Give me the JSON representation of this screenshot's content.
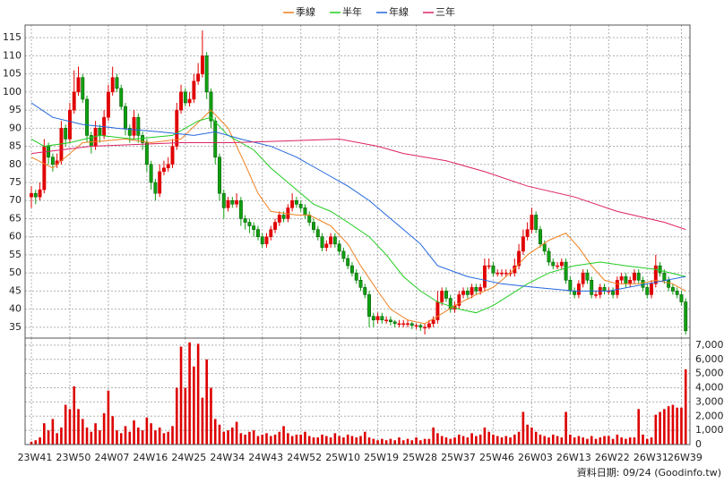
{
  "chart_data": {
    "type": "candlestick",
    "categories": [
      "23W41",
      null,
      null,
      null,
      null,
      null,
      null,
      null,
      null,
      "23W50",
      null,
      null,
      null,
      null,
      null,
      null,
      null,
      null,
      "24W07",
      null,
      null,
      null,
      null,
      null,
      null,
      null,
      null,
      "24W16",
      null,
      null,
      null,
      null,
      null,
      null,
      null,
      null,
      "24W25",
      null,
      null,
      null,
      null,
      null,
      null,
      null,
      null,
      "24W34",
      null,
      null,
      null,
      null,
      null,
      null,
      null,
      null,
      "24W43",
      null,
      null,
      null,
      null,
      null,
      null,
      null,
      null,
      "24W52",
      null,
      null,
      null,
      null,
      null,
      null,
      null,
      null,
      "25W10",
      null,
      null,
      null,
      null,
      null,
      null,
      null,
      null,
      "25W19",
      null,
      null,
      null,
      null,
      null,
      null,
      null,
      null,
      "25W28",
      null,
      null,
      null,
      null,
      null,
      null,
      null,
      null,
      "25W37",
      null,
      null,
      null,
      null,
      null,
      null,
      null,
      null,
      "25W46",
      null,
      null,
      null,
      null,
      null,
      null,
      null,
      null,
      "26W03",
      null,
      null,
      null,
      null,
      null,
      null,
      null,
      null,
      "26W13",
      null,
      null,
      null,
      null,
      null,
      null,
      null,
      null,
      "26W22",
      null,
      null,
      null,
      null,
      null,
      null,
      null,
      null,
      "26W31",
      null,
      null,
      null,
      null,
      null,
      null,
      null,
      "26W39",
      null
    ],
    "ohlc": [
      [
        71,
        74,
        68,
        72
      ],
      [
        72,
        73,
        69,
        71
      ],
      [
        71,
        75,
        70,
        73
      ],
      [
        73,
        87,
        72,
        85
      ],
      [
        85,
        86,
        80,
        82
      ],
      [
        82,
        83,
        78,
        80
      ],
      [
        80,
        83,
        79,
        81
      ],
      [
        81,
        92,
        80,
        90
      ],
      [
        90,
        91,
        85,
        87
      ],
      [
        87,
        97,
        86,
        95
      ],
      [
        95,
        106,
        94,
        100
      ],
      [
        100,
        107,
        99,
        104
      ],
      [
        104,
        105,
        97,
        98
      ],
      [
        98,
        99,
        86,
        88
      ],
      [
        88,
        89,
        83,
        85
      ],
      [
        85,
        92,
        84,
        90
      ],
      [
        90,
        91,
        86,
        88
      ],
      [
        88,
        95,
        87,
        93
      ],
      [
        93,
        102,
        92,
        100
      ],
      [
        100,
        107,
        99,
        104
      ],
      [
        104,
        105,
        100,
        101
      ],
      [
        101,
        102,
        95,
        96
      ],
      [
        96,
        97,
        88,
        90
      ],
      [
        90,
        91,
        86,
        88
      ],
      [
        88,
        95,
        87,
        93
      ],
      [
        93,
        94,
        86,
        88
      ],
      [
        88,
        89,
        84,
        86
      ],
      [
        86,
        87,
        78,
        80
      ],
      [
        80,
        81,
        73,
        75
      ],
      [
        75,
        76,
        70,
        72
      ],
      [
        72,
        80,
        71,
        78
      ],
      [
        78,
        81,
        77,
        79
      ],
      [
        79,
        82,
        78,
        80
      ],
      [
        80,
        87,
        79,
        85
      ],
      [
        85,
        97,
        84,
        95
      ],
      [
        95,
        102,
        94,
        100
      ],
      [
        100,
        101,
        96,
        97
      ],
      [
        97,
        100,
        96,
        98
      ],
      [
        98,
        105,
        97,
        103
      ],
      [
        103,
        108,
        102,
        105
      ],
      [
        105,
        117,
        104,
        110
      ],
      [
        110,
        111,
        98,
        100
      ],
      [
        100,
        101,
        90,
        92
      ],
      [
        92,
        93,
        80,
        82
      ],
      [
        82,
        83,
        70,
        72
      ],
      [
        72,
        73,
        65,
        68
      ],
      [
        68,
        71,
        67,
        70
      ],
      [
        70,
        71,
        68,
        69
      ],
      [
        69,
        72,
        68,
        70
      ],
      [
        70,
        71,
        63,
        65
      ],
      [
        65,
        66,
        62,
        64
      ],
      [
        64,
        65,
        61,
        63
      ],
      [
        63,
        64,
        60,
        62
      ],
      [
        62,
        63,
        59,
        60
      ],
      [
        60,
        61,
        57,
        58
      ],
      [
        58,
        61,
        57,
        60
      ],
      [
        60,
        63,
        59,
        62
      ],
      [
        62,
        65,
        61,
        64
      ],
      [
        64,
        67,
        63,
        66
      ],
      [
        66,
        67,
        64,
        65
      ],
      [
        65,
        69,
        64,
        68
      ],
      [
        68,
        72,
        67,
        70
      ],
      [
        70,
        71,
        68,
        69
      ],
      [
        69,
        70,
        67,
        68
      ],
      [
        68,
        69,
        65,
        66
      ],
      [
        66,
        67,
        63,
        64
      ],
      [
        64,
        65,
        61,
        62
      ],
      [
        62,
        63,
        59,
        60
      ],
      [
        60,
        61,
        56,
        57
      ],
      [
        57,
        59,
        56,
        58
      ],
      [
        58,
        61,
        57,
        60
      ],
      [
        60,
        61,
        57,
        58
      ],
      [
        58,
        59,
        55,
        56
      ],
      [
        56,
        57,
        53,
        54
      ],
      [
        54,
        55,
        51,
        52
      ],
      [
        52,
        53,
        49,
        50
      ],
      [
        50,
        51,
        47,
        48
      ],
      [
        48,
        49,
        45,
        46
      ],
      [
        46,
        47,
        43,
        44
      ],
      [
        44,
        45,
        35,
        38
      ],
      [
        38,
        39,
        35,
        37
      ],
      [
        37,
        39,
        36,
        38
      ],
      [
        38,
        39,
        36,
        37
      ],
      [
        37,
        38,
        36,
        37
      ],
      [
        37,
        38,
        35.5,
        36.5
      ],
      [
        36.5,
        37,
        35,
        36
      ],
      [
        36,
        37,
        35,
        36
      ],
      [
        36,
        37,
        35,
        36
      ],
      [
        36,
        37,
        35,
        36
      ],
      [
        36,
        36.5,
        34.5,
        35.5
      ],
      [
        35.5,
        36,
        34.5,
        35.5
      ],
      [
        35.5,
        36,
        34,
        35
      ],
      [
        35,
        36,
        33,
        35
      ],
      [
        35,
        37,
        34.5,
        36
      ],
      [
        36,
        38,
        35,
        37
      ],
      [
        37,
        45,
        36,
        42
      ],
      [
        42,
        46,
        41,
        45
      ],
      [
        45,
        46,
        42,
        43
      ],
      [
        43,
        44,
        39,
        40
      ],
      [
        40,
        42,
        39,
        41
      ],
      [
        41,
        45,
        40,
        44
      ],
      [
        44,
        46,
        43,
        45
      ],
      [
        45,
        46,
        43,
        44
      ],
      [
        44,
        47,
        43,
        46
      ],
      [
        46,
        47,
        44,
        45
      ],
      [
        45,
        47,
        44,
        46
      ],
      [
        46,
        54,
        45,
        52
      ],
      [
        52,
        54,
        51,
        52
      ],
      [
        52,
        53,
        49,
        50
      ],
      [
        50,
        51,
        49,
        50
      ],
      [
        50,
        51,
        49,
        50
      ],
      [
        50,
        51,
        49,
        50
      ],
      [
        50,
        51,
        49,
        50
      ],
      [
        50,
        54,
        49,
        52
      ],
      [
        52,
        58,
        51,
        56
      ],
      [
        56,
        62,
        55,
        60
      ],
      [
        60,
        64,
        59,
        62
      ],
      [
        62,
        68,
        61,
        66
      ],
      [
        66,
        67,
        61,
        62
      ],
      [
        62,
        63,
        57,
        58
      ],
      [
        58,
        59,
        55,
        56
      ],
      [
        56,
        57,
        52,
        53
      ],
      [
        53,
        54,
        51,
        52
      ],
      [
        52,
        53,
        51,
        52
      ],
      [
        52,
        54,
        51,
        53
      ],
      [
        53,
        54,
        47,
        48
      ],
      [
        48,
        49,
        44,
        45
      ],
      [
        45,
        46,
        43,
        44
      ],
      [
        44,
        48,
        43,
        47
      ],
      [
        47,
        51,
        46,
        50
      ],
      [
        50,
        51,
        47,
        48
      ],
      [
        48,
        49,
        43,
        44
      ],
      [
        44,
        45,
        43,
        44
      ],
      [
        44,
        47,
        43,
        46
      ],
      [
        46,
        47,
        44,
        45
      ],
      [
        45,
        46,
        44,
        45
      ],
      [
        45,
        46,
        43,
        44
      ],
      [
        44,
        49,
        43,
        48
      ],
      [
        48,
        50,
        47,
        49
      ],
      [
        49,
        50,
        46,
        47
      ],
      [
        47,
        49,
        46,
        48
      ],
      [
        48,
        51,
        47,
        50
      ],
      [
        50,
        51,
        47,
        48
      ],
      [
        48,
        49,
        45,
        46
      ],
      [
        46,
        47,
        43,
        44
      ],
      [
        44,
        48,
        43,
        47
      ],
      [
        47,
        55,
        46,
        52
      ],
      [
        52,
        53,
        49,
        50
      ],
      [
        50,
        51,
        47,
        48
      ],
      [
        48,
        49,
        45,
        46
      ],
      [
        46,
        47,
        44,
        45
      ],
      [
        45,
        46,
        43,
        44
      ],
      [
        44,
        45,
        41,
        42
      ],
      [
        42,
        43,
        33,
        34
      ]
    ],
    "up_color": "#e00000",
    "down_color": "#10a010",
    "ylim": [
      32,
      118.5
    ],
    "yticks": [
      35,
      40,
      45,
      50,
      55,
      60,
      65,
      70,
      75,
      80,
      85,
      90,
      95,
      100,
      105,
      110,
      115
    ],
    "grid": true,
    "lines": [
      {
        "name": "季線",
        "color": "#f08020",
        "x": [
          0,
          5,
          12,
          22,
          28,
          35,
          42,
          46,
          50,
          53,
          56,
          62,
          65,
          70,
          74,
          77,
          81,
          84,
          88,
          92,
          95,
          99,
          104,
          108,
          112,
          116,
          121,
          125,
          128,
          131,
          134,
          137,
          142,
          146,
          150,
          153
        ],
        "values": [
          82,
          79,
          86,
          87,
          86,
          87,
          95,
          90,
          80,
          72,
          67,
          66,
          66,
          63,
          58,
          52,
          45,
          40,
          37,
          36,
          38,
          41,
          44,
          46,
          50,
          55,
          59,
          61,
          57,
          52,
          48,
          47,
          47,
          48,
          47,
          45
        ]
      },
      {
        "name": "半年",
        "color": "#22cc22",
        "x": [
          0,
          3,
          9,
          16,
          24,
          33,
          39,
          42,
          46,
          52,
          56,
          62,
          66,
          70,
          74,
          79,
          83,
          87,
          91,
          95,
          100,
          104,
          108,
          112,
          116,
          121,
          127,
          133,
          139,
          146,
          153
        ],
        "values": [
          87,
          85,
          86,
          88,
          87,
          88,
          92,
          93,
          88,
          84,
          79,
          73,
          69,
          67,
          64,
          60,
          55,
          49,
          45,
          42,
          40,
          39,
          41,
          44,
          47,
          50,
          52,
          53,
          52,
          51,
          49
        ]
      },
      {
        "name": "年線",
        "color": "#2266dd",
        "x": [
          0,
          5,
          12,
          20,
          30,
          38,
          43,
          49,
          56,
          62,
          68,
          74,
          79,
          85,
          91,
          95,
          102,
          110,
          118,
          127,
          135,
          144,
          153
        ],
        "values": [
          97,
          93,
          91,
          90,
          89,
          88,
          89,
          87,
          85,
          82,
          78,
          74,
          70,
          64,
          58,
          52,
          49,
          47,
          46,
          45,
          45,
          47,
          49
        ]
      },
      {
        "name": "三年",
        "color": "#dd2266",
        "x": [
          0,
          14,
          35,
          47,
          60,
          72,
          81,
          87,
          97,
          106,
          116,
          127,
          137,
          148,
          153
        ],
        "values": [
          83,
          85,
          86,
          86,
          86.5,
          87,
          85,
          83,
          81,
          78,
          74,
          71,
          67,
          64,
          62
        ]
      }
    ],
    "volume": {
      "color": "#dd0000",
      "ylim": [
        0,
        7500
      ],
      "yticks": [
        0,
        {
          "value": 1000,
          "label": "1,000"
        },
        {
          "value": 2000,
          "label": "2,000"
        },
        {
          "value": 3000,
          "label": "3,000"
        },
        {
          "value": 4000,
          "label": "4,000"
        },
        {
          "value": 5000,
          "label": "5,000"
        },
        {
          "value": 6000,
          "label": "6,000"
        },
        {
          "value": 7000,
          "label": "7,000"
        }
      ],
      "values": [
        200,
        300,
        500,
        1500,
        1000,
        1800,
        800,
        1200,
        2800,
        2500,
        4100,
        2500,
        1800,
        1200,
        900,
        1500,
        1000,
        2200,
        3800,
        2000,
        1000,
        800,
        1300,
        900,
        1700,
        1200,
        1000,
        1900,
        1500,
        1000,
        1200,
        800,
        900,
        1300,
        4000,
        6900,
        4000,
        7200,
        5500,
        7100,
        3300,
        6000,
        4000,
        1800,
        1400,
        900,
        1000,
        1200,
        1600,
        800,
        700,
        900,
        1000,
        600,
        700,
        800,
        600,
        700,
        900,
        1300,
        800,
        600,
        700,
        700,
        900,
        600,
        500,
        500,
        700,
        600,
        500,
        800,
        600,
        500,
        700,
        600,
        500,
        600,
        900,
        500,
        400,
        300,
        400,
        300,
        400,
        300,
        500,
        300,
        400,
        300,
        500,
        300,
        400,
        400,
        1200,
        800,
        600,
        500,
        400,
        500,
        700,
        600,
        500,
        800,
        600,
        700,
        1200,
        900,
        700,
        600,
        500,
        600,
        500,
        700,
        900,
        2300,
        1400,
        1200,
        900,
        700,
        600,
        500,
        700,
        600,
        500,
        2300,
        700,
        500,
        600,
        500,
        400,
        600,
        400,
        500,
        600,
        600,
        400,
        700,
        500,
        400,
        500,
        500,
        2500,
        700,
        400,
        500,
        2100,
        2300,
        2500,
        2700,
        2800,
        2600,
        2600,
        5300
      ]
    },
    "footnote": "資料日期: 09/24  (Goodinfo.tw)"
  }
}
